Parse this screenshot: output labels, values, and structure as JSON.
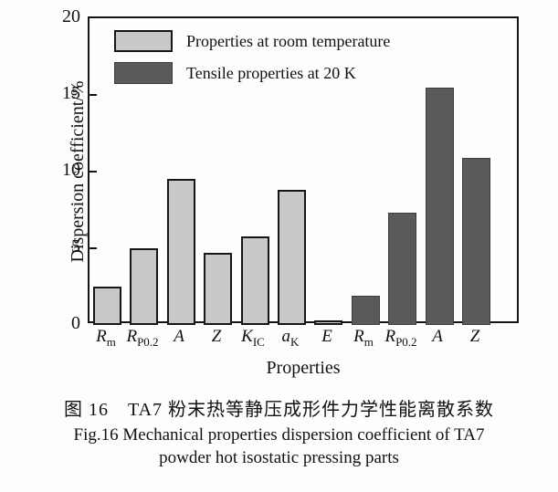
{
  "figure": {
    "caption_zh": "图 16　TA7 粉末热等静压成形件力学性能离散系数",
    "caption_en_line1": "Fig.16 Mechanical properties dispersion coefficient of TA7",
    "caption_en_line2": "powder hot isostatic pressing parts"
  },
  "chart_data": {
    "type": "bar",
    "title": "",
    "xlabel": "Properties",
    "ylabel": "Dispersion coefficient/%",
    "ylim": [
      0,
      20
    ],
    "yticks": [
      0,
      5,
      10,
      15,
      20
    ],
    "grid": false,
    "legend_position": "top-left-inside",
    "categories": [
      {
        "base": "R",
        "sub": "m"
      },
      {
        "base": "R",
        "sub": "P0.2"
      },
      {
        "base": "A",
        "sub": ""
      },
      {
        "base": "Z",
        "sub": ""
      },
      {
        "base": "K",
        "sub": "IC"
      },
      {
        "base": "a",
        "sub": "K"
      },
      {
        "base": "E",
        "sub": ""
      },
      {
        "base": "R",
        "sub": "m"
      },
      {
        "base": "R",
        "sub": "P0.2"
      },
      {
        "base": "A",
        "sub": ""
      },
      {
        "base": "Z",
        "sub": ""
      }
    ],
    "series": [
      {
        "name": "Properties at room temperature",
        "color": "#c9c9c9",
        "border": "#161616",
        "slots": [
          0,
          1,
          2,
          3,
          4,
          5,
          6
        ],
        "values": [
          2.5,
          5.0,
          9.5,
          4.7,
          5.8,
          8.8,
          0.3
        ]
      },
      {
        "name": "Tensile properties at 20 K",
        "color": "#5a5a5a",
        "border": "#3d3d3d",
        "slots": [
          7,
          8,
          9,
          10
        ],
        "values": [
          1.9,
          7.3,
          15.5,
          10.9
        ]
      }
    ]
  }
}
